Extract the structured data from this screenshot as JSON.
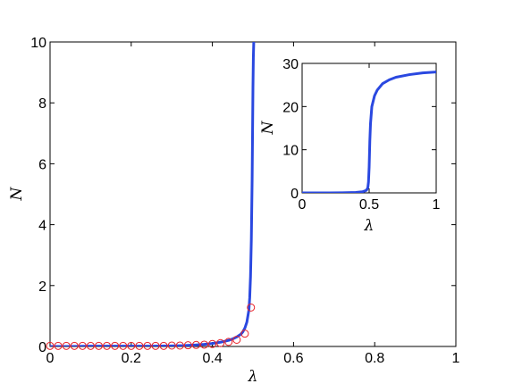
{
  "chart_data": [
    {
      "type": "line",
      "panel": "main",
      "xlabel": "λ",
      "ylabel": "N",
      "xlim": [
        0,
        1
      ],
      "ylim": [
        0,
        10
      ],
      "xticks": [
        0,
        0.2,
        0.4,
        0.6,
        0.8,
        1
      ],
      "xtick_labels": [
        "0",
        "0.2",
        "0.4",
        "0.6",
        "0.8",
        "1"
      ],
      "yticks": [
        0,
        2,
        4,
        6,
        8,
        10
      ],
      "ytick_labels": [
        "0",
        "2",
        "4",
        "6",
        "8",
        "10"
      ],
      "grid": false,
      "series": [
        {
          "style": "line",
          "color": "#2a48e0",
          "x": [
            0,
            0.05,
            0.1,
            0.15,
            0.2,
            0.25,
            0.3,
            0.33,
            0.36,
            0.38,
            0.4,
            0.42,
            0.44,
            0.45,
            0.46,
            0.47,
            0.475,
            0.48,
            0.485,
            0.49,
            0.492,
            0.494,
            0.496,
            0.498,
            0.5,
            0.501,
            0.502
          ],
          "y": [
            0.0,
            0.0,
            0.01,
            0.01,
            0.01,
            0.01,
            0.02,
            0.03,
            0.05,
            0.07,
            0.1,
            0.14,
            0.2,
            0.25,
            0.31,
            0.4,
            0.48,
            0.6,
            0.8,
            1.2,
            1.6,
            2.3,
            3.5,
            5.5,
            8.5,
            9.5,
            10.0
          ]
        },
        {
          "style": "markers",
          "marker": "open-circle",
          "color": "#e8242a",
          "x": [
            0,
            0.02,
            0.04,
            0.06,
            0.08,
            0.1,
            0.12,
            0.14,
            0.16,
            0.18,
            0.2,
            0.22,
            0.24,
            0.26,
            0.28,
            0.3,
            0.32,
            0.34,
            0.36,
            0.38,
            0.4,
            0.42,
            0.44,
            0.46,
            0.48,
            0.495
          ],
          "y": [
            0.02,
            0.02,
            0.02,
            0.02,
            0.02,
            0.02,
            0.02,
            0.02,
            0.02,
            0.02,
            0.02,
            0.02,
            0.02,
            0.02,
            0.02,
            0.03,
            0.03,
            0.04,
            0.05,
            0.06,
            0.08,
            0.11,
            0.15,
            0.22,
            0.42,
            1.28
          ]
        }
      ]
    },
    {
      "type": "line",
      "panel": "inset",
      "xlabel": "λ",
      "ylabel": "N",
      "xlim": [
        0,
        1
      ],
      "ylim": [
        0,
        30
      ],
      "xticks": [
        0,
        0.5,
        1
      ],
      "xtick_labels": [
        "0",
        "0.5",
        "1"
      ],
      "yticks": [
        0,
        10,
        20,
        30
      ],
      "ytick_labels": [
        "0",
        "10",
        "20",
        "30"
      ],
      "grid": false,
      "series": [
        {
          "style": "line",
          "color": "#2a48e0",
          "x": [
            0,
            0.1,
            0.2,
            0.3,
            0.4,
            0.45,
            0.48,
            0.49,
            0.495,
            0.5,
            0.505,
            0.51,
            0.52,
            0.54,
            0.56,
            0.6,
            0.65,
            0.7,
            0.8,
            0.9,
            1.0
          ],
          "y": [
            0,
            0,
            0,
            0.02,
            0.1,
            0.25,
            0.6,
            1.2,
            2.5,
            6,
            12,
            16,
            20,
            22.5,
            23.8,
            25.3,
            26.2,
            26.8,
            27.4,
            27.8,
            28.0
          ]
        }
      ]
    }
  ]
}
